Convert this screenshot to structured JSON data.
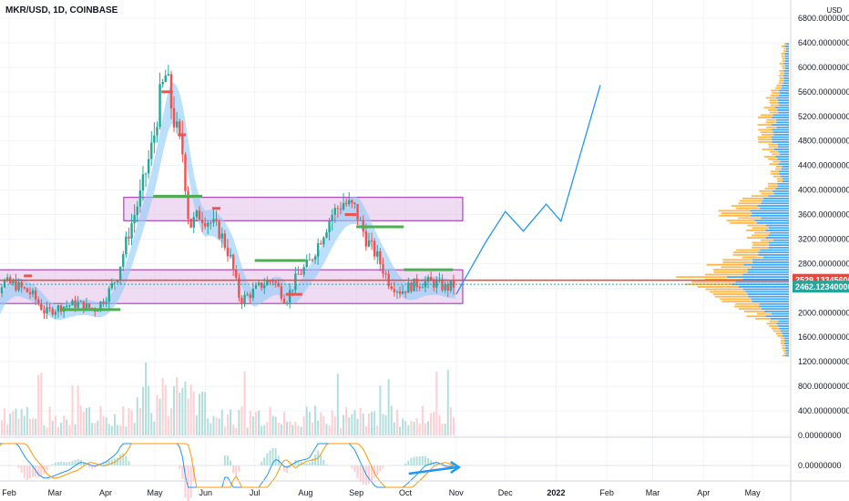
{
  "chart_data": {
    "type": "candlestick",
    "symbol": "MKR/USD, 1D, COINBASE",
    "currency": "USD",
    "y_ticks": [
      "6800.00000000",
      "6400.00000000",
      "6000.00000000",
      "5600.00000000",
      "5200.00000000",
      "4800.00000000",
      "4400.00000000",
      "4000.00000000",
      "3600.00000000",
      "3200.00000000",
      "2800.00000000",
      "2400.00000000",
      "2000.00000000",
      "1600.00000000",
      "1200.00000000",
      "800.00000000",
      "400.00000000",
      "0.00000000"
    ],
    "macd_tick": "0.00000000",
    "x_ticks": [
      {
        "label": "Feb",
        "date": "2021-02-01"
      },
      {
        "label": "Mar",
        "date": "2021-03-01"
      },
      {
        "label": "Apr",
        "date": "2021-04-01"
      },
      {
        "label": "May",
        "date": "2021-05-01"
      },
      {
        "label": "Jun",
        "date": "2021-06-01"
      },
      {
        "label": "Jul",
        "date": "2021-07-01"
      },
      {
        "label": "Aug",
        "date": "2021-08-01"
      },
      {
        "label": "Sep",
        "date": "2021-09-01"
      },
      {
        "label": "Oct",
        "date": "2021-10-01"
      },
      {
        "label": "Nov",
        "date": "2021-11-01"
      },
      {
        "label": "Dec",
        "date": "2021-12-01"
      },
      {
        "label": "2022",
        "date": "2022-01-01"
      },
      {
        "label": "Feb",
        "date": "2022-02-01"
      },
      {
        "label": "Mar",
        "date": "2022-03-01"
      },
      {
        "label": "Apr",
        "date": "2022-04-01"
      },
      {
        "label": "May",
        "date": "2022-05-01"
      }
    ],
    "price_tag_red": "2529.13345600",
    "price_tag_blue": "2462.12340000",
    "price_red_value": 2529.133456,
    "price_blue_value": 2462.1234,
    "colors": {
      "up": "#26a69a",
      "down": "#ef5350",
      "zone_fill": "#e1bee7",
      "zone_border": "#9c27b0",
      "projection": "#2196f3",
      "ribbon": "#90caf9",
      "vp_up": "#42a5f5",
      "vp_down": "#ffb74d",
      "macd": "#2196f3",
      "signal": "#ff9800",
      "hline": "#f44336"
    },
    "zones": [
      {
        "date_start": "2021-01-12",
        "date_end": "2021-11-05",
        "price_low": 2150,
        "price_high": 2700
      },
      {
        "date_start": "2021-04-12",
        "date_end": "2021-11-05",
        "price_low": 3500,
        "price_high": 3880
      }
    ],
    "projection": [
      {
        "date": "2021-11-01",
        "price": 2300
      },
      {
        "date": "2021-11-19",
        "price": 3150
      },
      {
        "date": "2021-12-01",
        "price": 3650
      },
      {
        "date": "2021-12-12",
        "price": 3330
      },
      {
        "date": "2021-12-26",
        "price": 3770
      },
      {
        "date": "2022-01-04",
        "price": 3490
      },
      {
        "date": "2022-01-28",
        "price": 5710
      }
    ],
    "price_series": [
      {
        "date": "2021-01-12",
        "price": 1400
      },
      {
        "date": "2021-01-20",
        "price": 2100
      },
      {
        "date": "2021-01-28",
        "price": 2500
      },
      {
        "date": "2021-02-05",
        "price": 2450
      },
      {
        "date": "2021-02-15",
        "price": 2300
      },
      {
        "date": "2021-02-23",
        "price": 2000
      },
      {
        "date": "2021-03-05",
        "price": 2100
      },
      {
        "date": "2021-03-15",
        "price": 2150
      },
      {
        "date": "2021-03-25",
        "price": 2050
      },
      {
        "date": "2021-04-01",
        "price": 2250
      },
      {
        "date": "2021-04-08",
        "price": 2600
      },
      {
        "date": "2021-04-15",
        "price": 3300
      },
      {
        "date": "2021-04-22",
        "price": 3900
      },
      {
        "date": "2021-04-30",
        "price": 4800
      },
      {
        "date": "2021-05-04",
        "price": 5500
      },
      {
        "date": "2021-05-08",
        "price": 5900
      },
      {
        "date": "2021-05-12",
        "price": 5200
      },
      {
        "date": "2021-05-18",
        "price": 4600
      },
      {
        "date": "2021-05-22",
        "price": 3400
      },
      {
        "date": "2021-05-28",
        "price": 3600
      },
      {
        "date": "2021-06-03",
        "price": 3500
      },
      {
        "date": "2021-06-10",
        "price": 3300
      },
      {
        "date": "2021-06-16",
        "price": 2900
      },
      {
        "date": "2021-06-22",
        "price": 2200
      },
      {
        "date": "2021-06-28",
        "price": 2300
      },
      {
        "date": "2021-07-05",
        "price": 2450
      },
      {
        "date": "2021-07-12",
        "price": 2550
      },
      {
        "date": "2021-07-20",
        "price": 2200
      },
      {
        "date": "2021-07-27",
        "price": 2600
      },
      {
        "date": "2021-08-03",
        "price": 2800
      },
      {
        "date": "2021-08-10",
        "price": 3200
      },
      {
        "date": "2021-08-17",
        "price": 3600
      },
      {
        "date": "2021-08-24",
        "price": 3800
      },
      {
        "date": "2021-08-31",
        "price": 3700
      },
      {
        "date": "2021-09-07",
        "price": 3200
      },
      {
        "date": "2021-09-14",
        "price": 2900
      },
      {
        "date": "2021-09-21",
        "price": 2500
      },
      {
        "date": "2021-09-28",
        "price": 2350
      },
      {
        "date": "2021-10-05",
        "price": 2450
      },
      {
        "date": "2021-10-12",
        "price": 2500
      },
      {
        "date": "2021-10-19",
        "price": 2480
      },
      {
        "date": "2021-10-26",
        "price": 2400
      },
      {
        "date": "2021-11-01",
        "price": 2462
      }
    ]
  }
}
